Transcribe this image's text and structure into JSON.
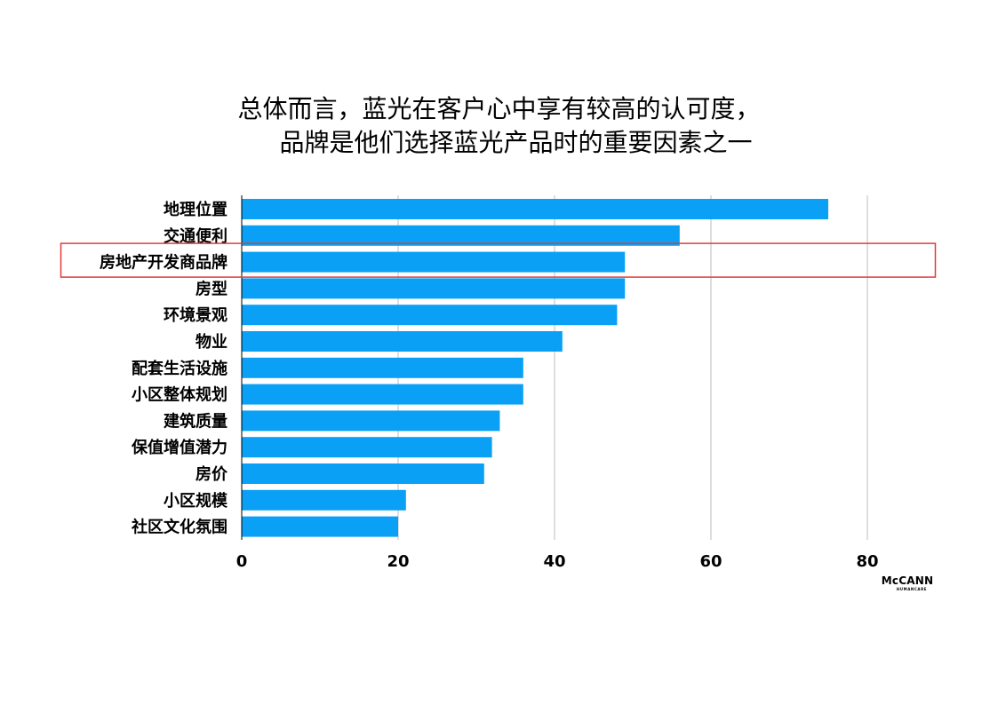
{
  "title": {
    "line1": "总体而言，蓝光在客户心中享有较高的认可度，",
    "line2": "品牌是他们选择蓝光产品时的重要因素之一"
  },
  "logo": {
    "main": "McCANN",
    "sub": "HUMANCARE"
  },
  "chart_data": {
    "type": "bar",
    "orientation": "horizontal",
    "categories": [
      "地理位置",
      "交通便利",
      "房地产开发商品牌",
      "房型",
      "环境景观",
      "物业",
      "配套生活设施",
      "小区整体规划",
      "建筑质量",
      "保值增值潜力",
      "房价",
      "小区规模",
      "社区文化氛围"
    ],
    "values": [
      75,
      56,
      49,
      49,
      48,
      41,
      36,
      36,
      33,
      32,
      31,
      21,
      20
    ],
    "xticks": [
      0,
      20,
      40,
      60,
      80
    ],
    "xlim": [
      0,
      90
    ],
    "grid": true,
    "highlighted_category": "房地产开发商品牌",
    "bar_color": "#0aa0f5",
    "grid_color": "#bdbdbd",
    "highlight_color": "#e03c3c",
    "xlabel": "",
    "ylabel": ""
  }
}
